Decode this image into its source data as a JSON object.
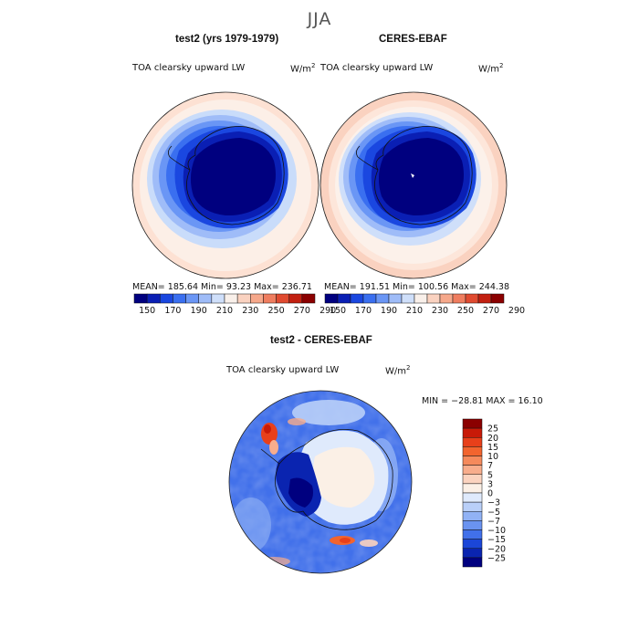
{
  "figure": {
    "title": "JJA"
  },
  "panels": {
    "test": {
      "title": "test2 (yrs 1979-1979)",
      "variable": "TOA clearsky upward LW",
      "units": "W/m",
      "units_sup": "2",
      "stats": "MEAN= 185.64   Min=  93.23   Max= 236.71"
    },
    "ref": {
      "title": "CERES-EBAF",
      "variable": "TOA clearsky upward LW",
      "units": "W/m",
      "units_sup": "2",
      "stats": "MEAN= 191.51   Min= 100.56   Max= 244.38"
    },
    "diff": {
      "title": "test2 - CERES-EBAF",
      "variable": "TOA clearsky upward LW",
      "units": "W/m",
      "units_sup": "2",
      "stats": "MIN = −28.81  MAX =  16.10"
    }
  },
  "chart_data": [
    {
      "type": "heatmap",
      "name": "test2 (yrs 1979-1979)",
      "projection": "south polar stereographic",
      "colorbar": {
        "orientation": "horizontal",
        "tick_labels": [
          "150",
          "170",
          "190",
          "210",
          "230",
          "250",
          "270",
          "290"
        ],
        "colors": [
          "#00007f",
          "#0a1fb4",
          "#1a47e0",
          "#3a6ff0",
          "#6a96f5",
          "#9fbcf8",
          "#cfdffa",
          "#f9f0ea",
          "#fad2c0",
          "#f6a88b",
          "#ef7d5f",
          "#e04a30",
          "#c22010",
          "#8b0000"
        ]
      },
      "stats": {
        "mean": 185.64,
        "min": 93.23,
        "max": 236.71
      }
    },
    {
      "type": "heatmap",
      "name": "CERES-EBAF",
      "projection": "south polar stereographic",
      "colorbar": {
        "orientation": "horizontal",
        "tick_labels": [
          "150",
          "170",
          "190",
          "210",
          "230",
          "250",
          "270",
          "290"
        ],
        "colors": [
          "#00007f",
          "#0a1fb4",
          "#1a47e0",
          "#3a6ff0",
          "#6a96f5",
          "#9fbcf8",
          "#cfdffa",
          "#f9f0ea",
          "#fad2c0",
          "#f6a88b",
          "#ef7d5f",
          "#e04a30",
          "#c22010",
          "#8b0000"
        ]
      },
      "stats": {
        "mean": 191.51,
        "min": 100.56,
        "max": 244.38
      }
    },
    {
      "type": "heatmap",
      "name": "test2 - CERES-EBAF",
      "projection": "south polar stereographic",
      "colorbar": {
        "orientation": "vertical",
        "tick_labels": [
          "25",
          "20",
          "15",
          "10",
          "7",
          "5",
          "3",
          "0",
          "−3",
          "−5",
          "−7",
          "−10",
          "−15",
          "−20",
          "−25"
        ],
        "colors": [
          "#8b0000",
          "#c81a08",
          "#e8401a",
          "#f2642e",
          "#f58a5c",
          "#f8ad8c",
          "#fbd3bf",
          "#fbf0e6",
          "#dfeafc",
          "#b9cff8",
          "#91b2f5",
          "#6a93f0",
          "#4170ea",
          "#1b46d8",
          "#0a24b0",
          "#00007f"
        ]
      },
      "stats": {
        "min": -28.81,
        "max": 16.1
      }
    }
  ]
}
